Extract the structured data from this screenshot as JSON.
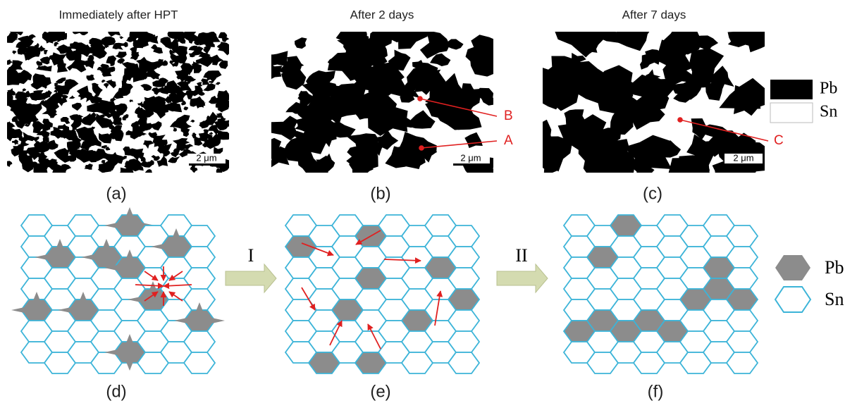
{
  "panels": [
    {
      "title": "Immediately after HPT",
      "scale_bar": "2 μm",
      "label": "(a)"
    },
    {
      "title": "After 2 days",
      "scale_bar": "2 μm",
      "label": "(b)"
    },
    {
      "title": "After 7 days",
      "scale_bar": "2 μm",
      "label": "(c)"
    }
  ],
  "annotations": [
    "B",
    "A",
    "C"
  ],
  "legend_top": [
    "Pb",
    "Sn"
  ],
  "schematics": [
    {
      "label": "(d)"
    },
    {
      "label": "(e)"
    },
    {
      "label": "(f)"
    }
  ],
  "steps": [
    "I",
    "II"
  ],
  "legend_bottom": [
    "Pb",
    "Sn"
  ]
}
